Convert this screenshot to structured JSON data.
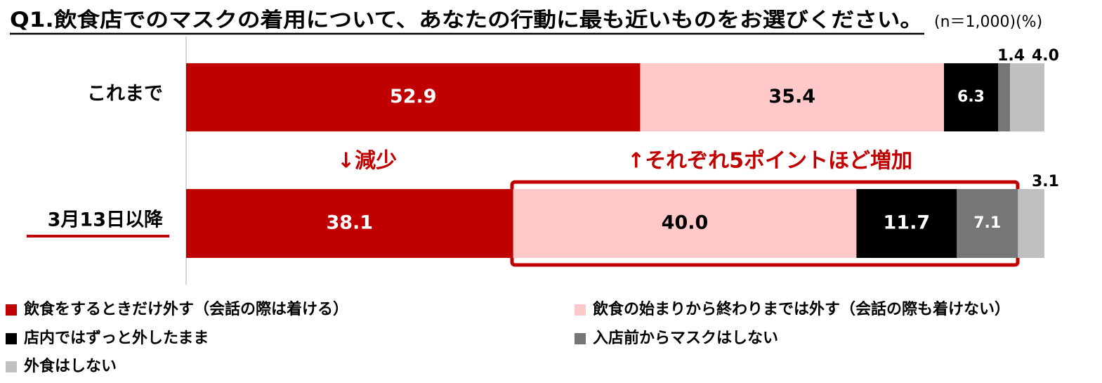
{
  "chart_data": {
    "type": "stacked_bar_horizontal",
    "title": "Q1.飲食店でのマスクの着用について、あなたの行動に最も近いものをお選びください。",
    "subtitle": "(n＝1,000)(%)",
    "annotations": [
      "↓減少",
      "↑それぞれ5ポイントほど増加"
    ],
    "categories": [
      "これまで",
      "3月13日以降"
    ],
    "xlim": [
      0,
      100
    ],
    "series": [
      {
        "name": "飲食をするときだけ外す（会話の際は着ける）",
        "color": "#c00000",
        "values": [
          52.9,
          38.1
        ]
      },
      {
        "name": "飲食の始まりから終わりまでは外す（会話の際も着けない）",
        "color": "#ffc9c9",
        "values": [
          35.4,
          40
        ],
        "value_labels": [
          "35.4",
          "40.0"
        ]
      },
      {
        "name": "店内ではずっと外したまま",
        "color": "#000000",
        "values": [
          6.3,
          11.7
        ]
      },
      {
        "name": "入店前からマスクはしない",
        "color": "#767676",
        "values": [
          1.4,
          7.1
        ]
      },
      {
        "name": "外食はしない",
        "color": "#c0c0c0",
        "values": [
          4,
          3.1
        ],
        "value_labels": [
          "4.0",
          "3.1"
        ]
      }
    ]
  }
}
